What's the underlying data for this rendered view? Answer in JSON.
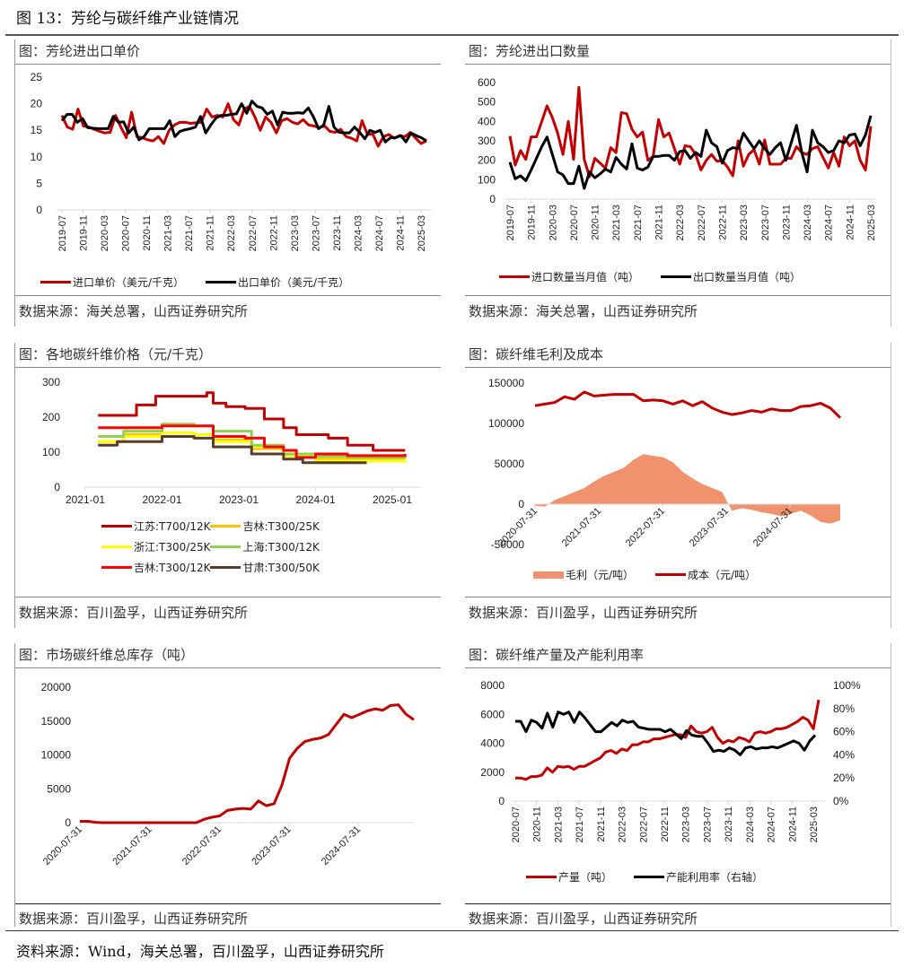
{
  "figure": {
    "title": "图 13：芳纶与碳纤维产业链情况",
    "footer_source": "资料来源：Wind，海关总署，百川盈孚，山西证券研究所"
  },
  "panels": {
    "p1": {
      "title": "图：芳纶进出口单价",
      "source": "数据来源：海关总署，山西证券研究所"
    },
    "p2": {
      "title": "图：芳纶进出口数量",
      "source": "数据来源：海关总署，山西证券研究所"
    },
    "p3": {
      "title": "图：各地碳纤维价格（元/千克）",
      "source": "数据来源：百川盈孚，山西证券研究所"
    },
    "p4": {
      "title": "图：碳纤维毛利及成本",
      "source": "数据来源：百川盈孚，山西证券研究所"
    },
    "p5": {
      "title": "图：市场碳纤维总库存（吨）",
      "source": "数据来源：百川盈孚，山西证券研究所"
    },
    "p6": {
      "title": "图：碳纤维产量及产能利用率",
      "source": "数据来源：百川盈孚，山西证券研究所"
    }
  },
  "chart_data": [
    {
      "id": "p1",
      "type": "line",
      "title": "图：芳纶进出口单价",
      "ylim": [
        0,
        25
      ],
      "yticks": [
        0,
        5,
        10,
        15,
        20,
        25
      ],
      "xticks": [
        "2019-07",
        "2019-11",
        "2020-03",
        "2020-07",
        "2020-11",
        "2021-03",
        "2021-07",
        "2021-11",
        "2022-03",
        "2022-07",
        "2022-11",
        "2023-03",
        "2023-07",
        "2023-11",
        "2024-03",
        "2024-07",
        "2024-11",
        "2025-03"
      ],
      "legend_position": "bottom",
      "series": [
        {
          "name": "进口单价（美元/千克）",
          "color": "#c00000",
          "values": [
            17.8,
            15.6,
            15.2,
            19.0,
            15.8,
            15.6,
            15.2,
            14.8,
            14.5,
            14.6,
            17.8,
            15.6,
            13.6,
            18.4,
            13.8,
            13.6,
            13.2,
            13.0,
            13.8,
            12.5,
            15.0,
            16.0,
            16.5,
            16.5,
            16.3,
            16.4,
            16.5,
            19.0,
            17.5,
            17.8,
            17.5,
            20.0,
            17.0,
            16.0,
            19.0,
            19.5,
            17.5,
            15.0,
            17.5,
            16.5,
            14.5,
            16.8,
            17.2,
            16.5,
            16.2,
            17.0,
            16.0,
            15.8,
            15.5,
            15.8,
            14.8,
            14.6,
            15.2,
            13.8,
            13.5,
            13.0,
            16.8,
            14.2,
            14.3,
            12.0,
            13.8,
            14.2,
            13.5,
            14.0,
            13.8,
            14.6,
            13.5,
            12.5,
            13.0
          ]
        },
        {
          "name": "出口单价（美元/千克）",
          "color": "#000000",
          "values": [
            16.8,
            18.0,
            18.0,
            16.5,
            17.2,
            15.5,
            15.4,
            15.3,
            15.3,
            15.3,
            17.6,
            16.5,
            16.6,
            14.5,
            15.6,
            13.2,
            13.8,
            15.3,
            15.3,
            15.3,
            15.3,
            16.8,
            13.8,
            14.8,
            15.1,
            15.3,
            15.6,
            17.6,
            14.5,
            16.0,
            17.3,
            17.8,
            17.8,
            18.0,
            18.1,
            20.0,
            18.2,
            20.5,
            19.5,
            19.2,
            18.0,
            18.6,
            16.0,
            18.4,
            18.2,
            18.2,
            18.3,
            18.2,
            19.2,
            17.5,
            15.3,
            16.0,
            19.5,
            15.6,
            14.6,
            14.5,
            14.5,
            15.6,
            14.6,
            13.4,
            15.0,
            14.6,
            15.0,
            12.8,
            13.6,
            13.6,
            14.0,
            12.8,
            14.5,
            14.0,
            13.6,
            13.0
          ]
        }
      ]
    },
    {
      "id": "p2",
      "type": "line",
      "title": "图：芳纶进出口数量",
      "ylim": [
        0,
        600
      ],
      "yticks": [
        0,
        100,
        200,
        300,
        400,
        500,
        600
      ],
      "xticks": [
        "2019-07",
        "2019-11",
        "2020-03",
        "2020-07",
        "2020-11",
        "2021-03",
        "2021-07",
        "2021-11",
        "2022-03",
        "2022-07",
        "2022-11",
        "2023-03",
        "2023-07",
        "2023-11",
        "2024-03",
        "2024-07",
        "2024-11",
        "2025-03"
      ],
      "legend_position": "bottom",
      "series": [
        {
          "name": "进口数量当月值（吨）",
          "color": "#c00000",
          "values": [
            325,
            175,
            250,
            205,
            320,
            320,
            400,
            480,
            420,
            340,
            230,
            400,
            205,
            575,
            205,
            115,
            210,
            185,
            160,
            265,
            240,
            445,
            440,
            360,
            320,
            345,
            200,
            220,
            410,
            320,
            340,
            260,
            180,
            275,
            270,
            230,
            150,
            200,
            230,
            195,
            200,
            165,
            120,
            300,
            170,
            230,
            255,
            180,
            305,
            180,
            180,
            180,
            210,
            210,
            270,
            240,
            230,
            260,
            270,
            215,
            160,
            240,
            170,
            320,
            275,
            300,
            200,
            150,
            375
          ]
        },
        {
          "name": "出口数量当月值（吨）",
          "color": "#000000",
          "values": [
            190,
            105,
            120,
            95,
            150,
            210,
            270,
            320,
            230,
            140,
            125,
            80,
            80,
            170,
            55,
            140,
            110,
            130,
            155,
            140,
            215,
            180,
            155,
            285,
            160,
            150,
            165,
            220,
            220,
            225,
            225,
            200,
            245,
            250,
            210,
            240,
            220,
            355,
            290,
            270,
            185,
            250,
            265,
            260,
            340,
            300,
            260,
            300,
            260,
            230,
            265,
            290,
            200,
            290,
            380,
            240,
            140,
            355,
            290,
            270,
            240,
            250,
            300,
            290,
            330,
            335,
            275,
            330,
            430
          ]
        }
      ]
    },
    {
      "id": "p3",
      "type": "line",
      "title": "图：各地碳纤维价格（元/千克）",
      "ylim": [
        0,
        300
      ],
      "yticks": [
        0,
        100,
        200,
        300
      ],
      "xticks": [
        "2021-01",
        "2022-01",
        "2023-01",
        "2024-01",
        "2025-01"
      ],
      "legend_position": "bottom",
      "series": [
        {
          "name": "江苏:T700/12K",
          "color": "#c00000",
          "x": [
            "2021-03",
            "2021-07",
            "2021-09",
            "2021-12",
            "2022-08",
            "2022-09",
            "2022-11",
            "2023-02",
            "2023-05",
            "2023-08",
            "2023-10",
            "2024-03",
            "2024-06",
            "2024-10",
            "2025-03"
          ],
          "values": [
            205,
            205,
            235,
            260,
            270,
            240,
            230,
            225,
            195,
            170,
            150,
            140,
            120,
            105,
            105
          ]
        },
        {
          "name": "吉林:T300/25K",
          "color": "#ffc000",
          "x": [
            "2021-03",
            "2021-07",
            "2022-01",
            "2022-06",
            "2022-09",
            "2023-03",
            "2023-08",
            "2024-01",
            "2025-03"
          ],
          "values": [
            130,
            150,
            155,
            150,
            135,
            110,
            90,
            80,
            80
          ]
        },
        {
          "name": "浙江:T300/25K",
          "color": "#ffff00",
          "x": [
            "2021-03",
            "2021-07",
            "2022-01",
            "2022-06",
            "2022-09",
            "2023-03",
            "2023-08",
            "2024-01",
            "2025-03"
          ],
          "values": [
            130,
            145,
            155,
            150,
            130,
            115,
            90,
            75,
            70
          ]
        },
        {
          "name": "上海:T300/12K",
          "color": "#92d050",
          "x": [
            "2021-03",
            "2021-07",
            "2022-01",
            "2022-06",
            "2022-09",
            "2023-03",
            "2023-08",
            "2024-01",
            "2024-06",
            "2025-03"
          ],
          "values": [
            145,
            160,
            180,
            175,
            160,
            120,
            95,
            88,
            85,
            90
          ]
        },
        {
          "name": "吉林:T300/12K",
          "color": "#ff0000",
          "x": [
            "2021-03",
            "2021-07",
            "2022-01",
            "2022-06",
            "2022-09",
            "2023-02",
            "2023-05",
            "2023-08",
            "2023-10",
            "2024-01",
            "2024-06",
            "2025-03"
          ],
          "values": [
            170,
            170,
            175,
            175,
            145,
            140,
            115,
            105,
            85,
            95,
            90,
            95
          ]
        },
        {
          "name": "甘肃:T300/50K",
          "color": "#5a3c28",
          "x": [
            "2021-03",
            "2021-06",
            "2022-01",
            "2022-06",
            "2022-09",
            "2023-03",
            "2023-08",
            "2023-11",
            "2024-09"
          ],
          "values": [
            120,
            130,
            145,
            140,
            115,
            95,
            80,
            70,
            70
          ]
        }
      ]
    },
    {
      "id": "p4",
      "type": "area",
      "title": "图：碳纤维毛利及成本",
      "ylim": [
        -50000,
        150000
      ],
      "yticks": [
        -50000,
        0,
        50000,
        100000,
        150000
      ],
      "xticks": [
        "2020-07-31",
        "2021-07-31",
        "2022-07-31",
        "2023-07-31",
        "2024-07-31"
      ],
      "legend_position": "bottom",
      "series": [
        {
          "name": "毛利（元/吨）",
          "color": "#f0926e",
          "kind": "area",
          "values": [
            -2000,
            -3000,
            5000,
            10000,
            15000,
            20000,
            28000,
            35000,
            40000,
            45000,
            55000,
            62000,
            60000,
            58000,
            52000,
            40000,
            32000,
            25000,
            20000,
            15000,
            -8000,
            -5000,
            -7000,
            -10000,
            -12000,
            -15000,
            -12000,
            -8000,
            -14000,
            -22000,
            -24000,
            -20000
          ]
        },
        {
          "name": "成本（元/吨）",
          "color": "#c00000",
          "kind": "line",
          "values": [
            122000,
            124000,
            126000,
            133000,
            130000,
            139000,
            134000,
            135000,
            136000,
            136000,
            136000,
            128000,
            129000,
            128000,
            124000,
            128000,
            122000,
            127000,
            119000,
            114000,
            111000,
            113000,
            116000,
            114000,
            118000,
            116000,
            116000,
            121000,
            122000,
            125000,
            119000,
            107000
          ]
        }
      ]
    },
    {
      "id": "p5",
      "type": "line",
      "title": "图：市场碳纤维总库存（吨）",
      "ylim": [
        0,
        20000
      ],
      "yticks": [
        0,
        5000,
        10000,
        15000,
        20000
      ],
      "xticks": [
        "2020-07-31",
        "2021-07-31",
        "2022-07-31",
        "2023-07-31",
        "2024-07-31"
      ],
      "series": [
        {
          "name": "库存（吨）",
          "color": "#c00000",
          "values": [
            200,
            200,
            50,
            0,
            0,
            0,
            0,
            0,
            0,
            0,
            0,
            0,
            0,
            0,
            0,
            0,
            500,
            800,
            1000,
            1800,
            2000,
            2100,
            2000,
            3200,
            2500,
            2800,
            5500,
            9500,
            11000,
            12000,
            12300,
            12500,
            13000,
            14500,
            16000,
            15500,
            16000,
            16500,
            16800,
            16600,
            17300,
            17400,
            16000,
            15200
          ]
        }
      ]
    },
    {
      "id": "p6",
      "type": "line",
      "title": "图：碳纤维产量及产能利用率",
      "ylim": [
        0,
        8000
      ],
      "yticks": [
        0,
        2000,
        4000,
        6000,
        8000
      ],
      "y2lim": [
        0,
        1
      ],
      "y2ticks": [
        "0%",
        "20%",
        "40%",
        "60%",
        "80%",
        "100%"
      ],
      "xticks": [
        "2020-07",
        "2020-11",
        "2021-03",
        "2021-07",
        "2021-11",
        "2022-03",
        "2022-07",
        "2022-11",
        "2023-03",
        "2023-07",
        "2023-11",
        "2024-03",
        "2024-07",
        "2024-11",
        "2025-03"
      ],
      "legend_position": "bottom",
      "series": [
        {
          "name": "产量（吨）",
          "color": "#c00000",
          "axis": "left",
          "values": [
            1600,
            1600,
            1500,
            1700,
            1700,
            1800,
            2300,
            2000,
            2400,
            2350,
            2400,
            2200,
            2400,
            2400,
            2600,
            2800,
            3000,
            3400,
            3500,
            3300,
            3600,
            3500,
            3900,
            3900,
            4100,
            4100,
            4300,
            4300,
            4400,
            4500,
            4600,
            4600,
            4400,
            5200,
            4800,
            4700,
            4800,
            5100,
            4400,
            4000,
            4200,
            4100,
            4400,
            4300,
            4100,
            4700,
            4800,
            4700,
            4800,
            5000,
            5000,
            5100,
            5300,
            5500,
            5800,
            5600,
            5000,
            7000
          ]
        },
        {
          "name": "产能利用率（右轴）",
          "color": "#000000",
          "axis": "right",
          "values": [
            0.69,
            0.69,
            0.6,
            0.7,
            0.68,
            0.63,
            0.76,
            0.64,
            0.77,
            0.75,
            0.77,
            0.68,
            0.77,
            0.72,
            0.66,
            0.6,
            0.6,
            0.64,
            0.68,
            0.65,
            0.7,
            0.68,
            0.69,
            0.64,
            0.63,
            0.62,
            0.62,
            0.62,
            0.6,
            0.62,
            0.58,
            0.54,
            0.61,
            0.57,
            0.56,
            0.56,
            0.5,
            0.43,
            0.44,
            0.43,
            0.46,
            0.44,
            0.4,
            0.46,
            0.47,
            0.45,
            0.46,
            0.46,
            0.47,
            0.46,
            0.48,
            0.5,
            0.52,
            0.5,
            0.44,
            0.52,
            0.57
          ]
        }
      ]
    }
  ]
}
